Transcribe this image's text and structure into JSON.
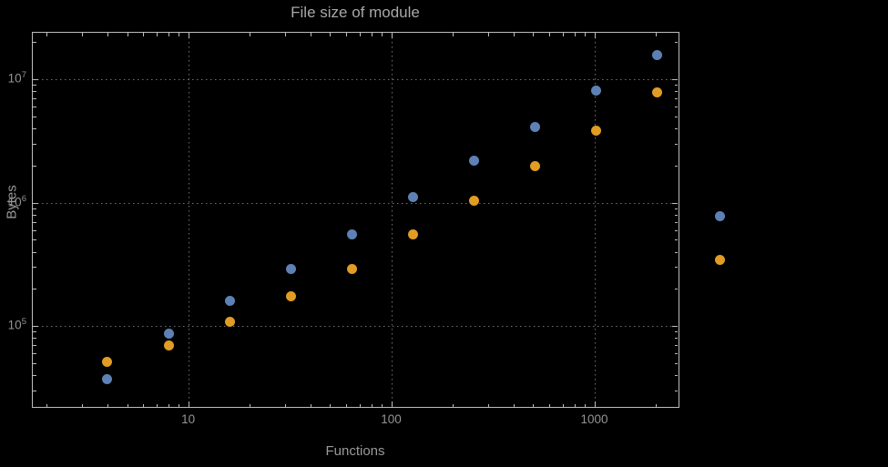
{
  "title": "File size of module",
  "xlabel": "Functions",
  "ylabel": "Bytes",
  "axes": {
    "x_ticks": [
      "10",
      "100",
      "1000"
    ],
    "y_ticks": [
      "10^5",
      "10^6",
      "10^7"
    ]
  },
  "colors": {
    "background": "#000000",
    "frame": "#bdbdbd",
    "grid": "#6f6f6f",
    "labels": "#9a9a9a",
    "series_blue": "#5e81b5",
    "series_orange": "#e19c24"
  },
  "chart_data": {
    "type": "scatter",
    "title": "File size of module",
    "xlabel": "Functions",
    "ylabel": "Bytes",
    "xscale": "log",
    "yscale": "log",
    "grid": "dotted-major-decades",
    "xlim": [
      1.7,
      2600
    ],
    "ylim": [
      21700,
      24200000
    ],
    "x": [
      4,
      8,
      16,
      32,
      64,
      128,
      256,
      512,
      1024,
      2048
    ],
    "series": [
      {
        "name": "blue",
        "color": "#5e81b5",
        "values": [
          37000,
          86000,
          161000,
          292000,
          557000,
          1100000,
          2170000,
          4070000,
          8150000,
          15800000
        ]
      },
      {
        "name": "orange",
        "color": "#e19c24",
        "values": [
          51000,
          69000,
          109000,
          175000,
          292000,
          548000,
          1040000,
          1990000,
          3860000,
          7870000
        ]
      }
    ],
    "legend": {
      "position": "right-outside",
      "labels_visible": false,
      "entries": [
        {
          "color": "#5e81b5"
        },
        {
          "color": "#e19c24"
        }
      ]
    }
  }
}
